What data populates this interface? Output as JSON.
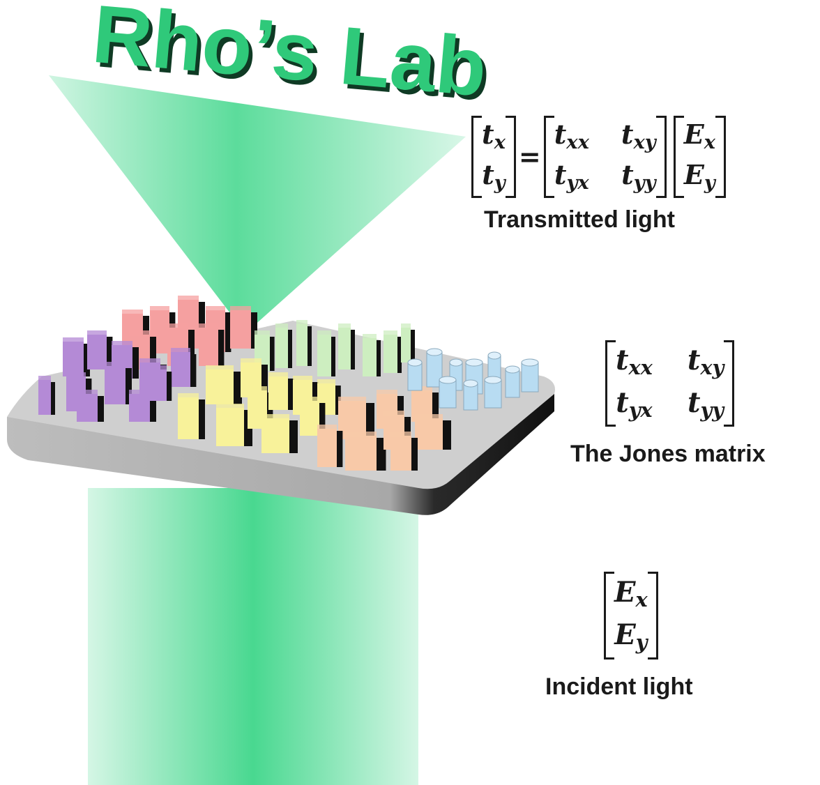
{
  "title": "Rho’s Lab",
  "colors": {
    "title": "#2fc97a",
    "title_shadow": "#0f3a24",
    "beam": "#3fd68a",
    "substrate": "#cfcfcf",
    "substrate_edge": "#1a1a1a",
    "red": "#f5a0a0",
    "purple": "#b48ad6",
    "green_light": "#cdeec0",
    "yellow": "#f8f29a",
    "peach": "#f8c9a8",
    "blue": "#b8dcf2"
  },
  "transmitted": {
    "vector_left": {
      "x": "t",
      "x_sub": "x",
      "y": "t",
      "y_sub": "y"
    },
    "equals": "=",
    "matrix": {
      "a": "t",
      "a_sub": "xx",
      "b": "t",
      "b_sub": "xy",
      "c": "t",
      "c_sub": "yx",
      "d": "t",
      "d_sub": "yy"
    },
    "vector_right": {
      "x": "E",
      "x_sub": "x",
      "y": "E",
      "y_sub": "y"
    },
    "label": "Transmitted light"
  },
  "jones": {
    "matrix": {
      "a": "t",
      "a_sub": "xx",
      "b": "t",
      "b_sub": "xy",
      "c": "t",
      "c_sub": "yx",
      "d": "t",
      "d_sub": "yy"
    },
    "label": "The Jones matrix"
  },
  "incident": {
    "vector": {
      "x": "E",
      "x_sub": "x",
      "y": "E",
      "y_sub": "y"
    },
    "label": "Incident light"
  }
}
